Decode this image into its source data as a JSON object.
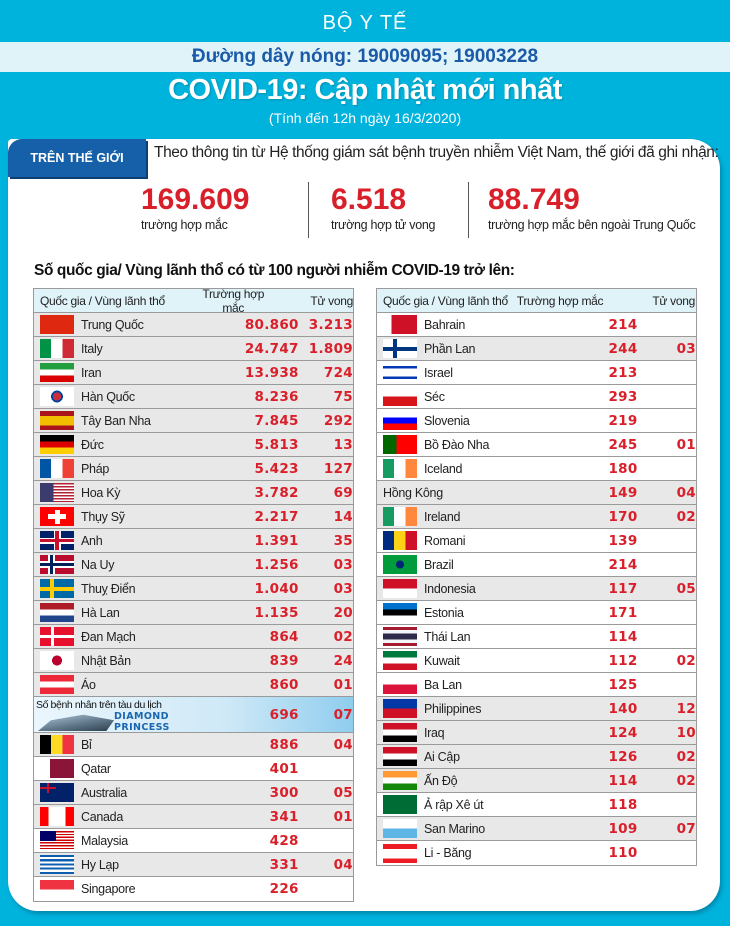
{
  "header": {
    "ministry": "BỘ Y TẾ",
    "hotline": "Đường dây nóng: 19009095; 19003228",
    "title": "COVID-19: Cập nhật mới nhất",
    "date": "(Tính đến 12h ngày 16/3/2020)"
  },
  "world": {
    "tab_label": "TRÊN THẾ GIỚI",
    "intro": "Theo thông tin từ Hệ thống giám sát bệnh truyền nhiễm Việt Nam, thế giới đã ghi nhận:",
    "stats": [
      {
        "value": "169.609",
        "label": "trường hợp mắc"
      },
      {
        "value": "6.518",
        "label": "trường hợp tử vong"
      },
      {
        "value": "88.749",
        "label": "trường hợp  mắc bên ngoài Trung Quốc"
      }
    ]
  },
  "section_title": "Số quốc gia/ Vùng lãnh thổ có từ 100 người  nhiễm COVID-19 trở lên:",
  "table_headers": {
    "country": "Quốc gia / Vùng lãnh thổ",
    "cases": "Trường hợp mắc",
    "deaths": "Tử vong"
  },
  "colors": {
    "background": "#00b3dd",
    "accent_red": "#d9202a",
    "tab_blue": "#1560a8",
    "hotline_blue": "#1b5aa6"
  },
  "left_table": [
    {
      "name": "Trung Quốc",
      "cases": "80.860",
      "deaths": "3.213",
      "flag": "china-flag-icon"
    },
    {
      "name": "Italy",
      "cases": "24.747",
      "deaths": "1.809",
      "flag": "italy-flag-icon"
    },
    {
      "name": "Iran",
      "cases": "13.938",
      "deaths": "724",
      "flag": "iran-flag-icon"
    },
    {
      "name": "Hàn Quốc",
      "cases": "8.236",
      "deaths": "75",
      "flag": "south-korea-flag-icon"
    },
    {
      "name": "Tây Ban Nha",
      "cases": "7.845",
      "deaths": "292",
      "flag": "spain-flag-icon"
    },
    {
      "name": "Đức",
      "cases": "5.813",
      "deaths": "13",
      "flag": "germany-flag-icon"
    },
    {
      "name": "Pháp",
      "cases": "5.423",
      "deaths": "127",
      "flag": "france-flag-icon"
    },
    {
      "name": "Hoa Kỳ",
      "cases": "3.782",
      "deaths": "69",
      "flag": "usa-flag-icon"
    },
    {
      "name": "Thụy Sỹ",
      "cases": "2.217",
      "deaths": "14",
      "flag": "switzerland-flag-icon"
    },
    {
      "name": "Anh",
      "cases": "1.391",
      "deaths": "35",
      "flag": "uk-flag-icon"
    },
    {
      "name": "Na Uy",
      "cases": "1.256",
      "deaths": "03",
      "flag": "norway-flag-icon"
    },
    {
      "name": "Thuỵ Điển",
      "cases": "1.040",
      "deaths": "03",
      "flag": "sweden-flag-icon"
    },
    {
      "name": "Hà Lan",
      "cases": "1.135",
      "deaths": "20",
      "flag": "netherlands-flag-icon"
    },
    {
      "name": "Đan Mạch",
      "cases": "864",
      "deaths": "02",
      "flag": "denmark-flag-icon"
    },
    {
      "name": "Nhật Bản",
      "cases": "839",
      "deaths": "24",
      "flag": "japan-flag-icon"
    },
    {
      "name": "Áo",
      "cases": "860",
      "deaths": "01",
      "flag": "austria-flag-icon"
    },
    {
      "name": "Số bệnh nhân trên tàu du lịch",
      "brand_line1": "DIAMOND",
      "brand_line2": "PRINCESS",
      "cases": "696",
      "deaths": "07",
      "flag": "cruise-ship-icon"
    },
    {
      "name": "Bỉ",
      "cases": "886",
      "deaths": "04",
      "flag": "belgium-flag-icon"
    },
    {
      "name": "Qatar",
      "cases": "401",
      "deaths": "",
      "flag": "qatar-flag-icon"
    },
    {
      "name": "Australia",
      "cases": "300",
      "deaths": "05",
      "flag": "australia-flag-icon"
    },
    {
      "name": "Canada",
      "cases": "341",
      "deaths": "01",
      "flag": "canada-flag-icon"
    },
    {
      "name": "Malaysia",
      "cases": "428",
      "deaths": "",
      "flag": "malaysia-flag-icon"
    },
    {
      "name": "Hy Lạp",
      "cases": "331",
      "deaths": "04",
      "flag": "greece-flag-icon"
    },
    {
      "name": "Singapore",
      "cases": "226",
      "deaths": "",
      "flag": "singapore-flag-icon"
    }
  ],
  "right_table": [
    {
      "name": "Bahrain",
      "cases": "214",
      "deaths": "",
      "flag": "bahrain-flag-icon"
    },
    {
      "name": "Phần Lan",
      "cases": "244",
      "deaths": "03",
      "flag": "finland-flag-icon"
    },
    {
      "name": "Israel",
      "cases": "213",
      "deaths": "",
      "flag": "israel-flag-icon"
    },
    {
      "name": "Séc",
      "cases": "293",
      "deaths": "",
      "flag": "czech-flag-icon"
    },
    {
      "name": "Slovenia",
      "cases": "219",
      "deaths": "",
      "flag": "slovenia-flag-icon"
    },
    {
      "name": "Bồ Đào Nha",
      "cases": "245",
      "deaths": "01",
      "flag": "portugal-flag-icon"
    },
    {
      "name": "Iceland",
      "cases": "180",
      "deaths": "",
      "flag": "iceland-flag-icon"
    },
    {
      "name": "Hồng Kông",
      "cases": "149",
      "deaths": "04",
      "flag": ""
    },
    {
      "name": "Ireland",
      "cases": "170",
      "deaths": "02",
      "flag": "ireland-flag-icon"
    },
    {
      "name": "Romani",
      "cases": "139",
      "deaths": "",
      "flag": "romania-flag-icon"
    },
    {
      "name": "Brazil",
      "cases": "214",
      "deaths": "",
      "flag": "brazil-flag-icon"
    },
    {
      "name": "Indonesia",
      "cases": "117",
      "deaths": "05",
      "flag": "indonesia-flag-icon"
    },
    {
      "name": "Estonia",
      "cases": "171",
      "deaths": "",
      "flag": "estonia-flag-icon"
    },
    {
      "name": "Thái Lan",
      "cases": "114",
      "deaths": "",
      "flag": "thailand-flag-icon"
    },
    {
      "name": "Kuwait",
      "cases": "112",
      "deaths": "02",
      "flag": "kuwait-flag-icon"
    },
    {
      "name": "Ba Lan",
      "cases": "125",
      "deaths": "",
      "flag": "poland-flag-icon"
    },
    {
      "name": "Philippines",
      "cases": "140",
      "deaths": "12",
      "flag": "philippines-flag-icon"
    },
    {
      "name": "Iraq",
      "cases": "124",
      "deaths": "10",
      "flag": "iraq-flag-icon"
    },
    {
      "name": "Ai Cập",
      "cases": "126",
      "deaths": "02",
      "flag": "egypt-flag-icon"
    },
    {
      "name": "Ấn Độ",
      "cases": "114",
      "deaths": "02",
      "flag": "india-flag-icon"
    },
    {
      "name": "Ả rập Xê út",
      "cases": "118",
      "deaths": "",
      "flag": "saudi-arabia-flag-icon"
    },
    {
      "name": "San Marino",
      "cases": "109",
      "deaths": "07",
      "flag": "san-marino-flag-icon"
    },
    {
      "name": "Li - Băng",
      "cases": "110",
      "deaths": "",
      "flag": "lebanon-flag-icon"
    }
  ]
}
